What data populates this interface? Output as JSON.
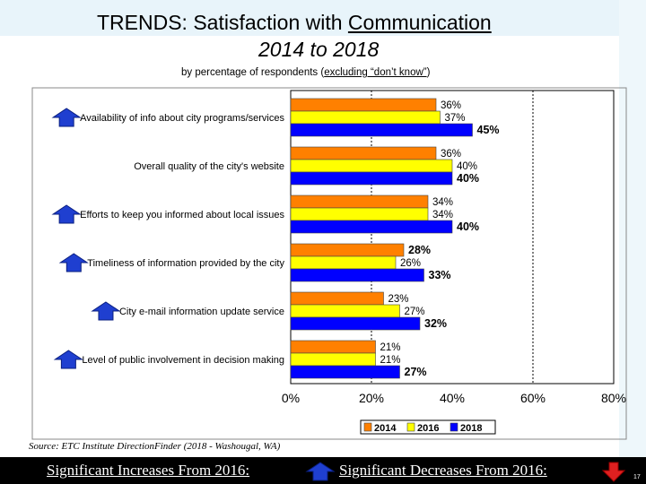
{
  "title": {
    "prefix": "TRENDS:  Satisfaction with ",
    "emphasis": "Communication",
    "years": "2014 to 2018",
    "subtitle_pre": "by percentage of respondents (",
    "subtitle_link": "excluding “don’t know”",
    "subtitle_post": ")"
  },
  "source": "Source:  ETC Institute DirectionFinder (2018 - Washougal, WA)",
  "footer": {
    "increase_label": "Significant Increases From 2016:",
    "decrease_label": "Significant Decreases From 2016:",
    "page_number": "17"
  },
  "chart_data": {
    "type": "bar",
    "orientation": "horizontal",
    "categories": [
      "Availability of info about city programs/services",
      "Overall quality of the city's website",
      "Efforts to keep you informed about local issues",
      "Timeliness of information provided by the city",
      "City e-mail information update service",
      "Level of public involvement in decision making"
    ],
    "series": [
      {
        "name": "2014",
        "color": "#ff8000",
        "values": [
          36,
          36,
          34,
          28,
          23,
          21
        ],
        "labels": [
          "36%",
          "36%",
          "34%",
          "28%",
          "23%",
          "21%"
        ],
        "bold": [
          false,
          false,
          false,
          true,
          false,
          false
        ]
      },
      {
        "name": "2016",
        "color": "#ffff00",
        "values": [
          37,
          40,
          34,
          26,
          27,
          21
        ],
        "labels": [
          "37%",
          "40%",
          "34%",
          "26%",
          "27%",
          "21%"
        ],
        "bold": [
          false,
          false,
          false,
          false,
          false,
          false
        ]
      },
      {
        "name": "2018",
        "color": "#0000ff",
        "values": [
          45,
          40,
          40,
          33,
          32,
          27
        ],
        "labels": [
          "45%",
          "40%",
          "40%",
          "33%",
          "32%",
          "27%"
        ],
        "bold": [
          true,
          true,
          true,
          true,
          true,
          true
        ]
      }
    ],
    "significant_increase": [
      true,
      false,
      true,
      true,
      true,
      true
    ],
    "xlim": [
      0,
      80
    ],
    "xticks": [
      "0%",
      "20%",
      "40%",
      "60%",
      "80%"
    ],
    "gridlines": [
      20,
      60
    ],
    "legend": [
      "2014",
      "2016",
      "2018"
    ],
    "legend_position": "bottom"
  }
}
